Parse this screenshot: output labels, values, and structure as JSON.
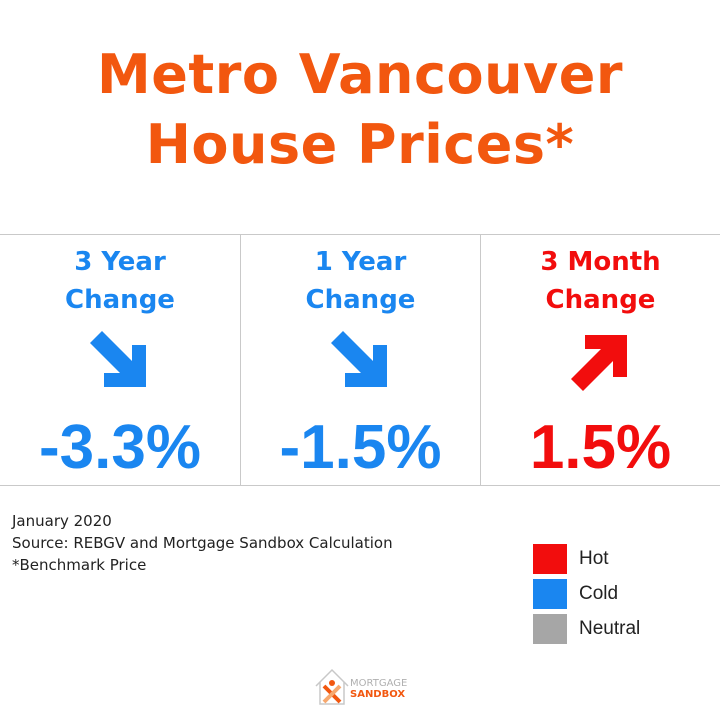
{
  "title": {
    "line1": "Metro Vancouver",
    "line2": "House Prices*"
  },
  "cards": [
    {
      "label_line1": "3 Year",
      "label_line2": "Change",
      "direction": "down",
      "value": "-3.3%",
      "status": "cold"
    },
    {
      "label_line1": "1 Year",
      "label_line2": "Change",
      "direction": "down",
      "value": "-1.5%",
      "status": "cold"
    },
    {
      "label_line1": "3 Month",
      "label_line2": "Change",
      "direction": "up",
      "value": "1.5%",
      "status": "hot"
    }
  ],
  "notes": {
    "date": "January 2020",
    "source": "Source: REBGV and Mortgage Sandbox Calculation",
    "footnote": "*Benchmark Price"
  },
  "legend": [
    {
      "label": "Hot",
      "color": "#f20d0d"
    },
    {
      "label": "Cold",
      "color": "#1a86f0"
    },
    {
      "label": "Neutral",
      "color": "#a6a6a6"
    }
  ],
  "logo": {
    "line1": "MORTGAGE",
    "line2": "SANDBOX"
  },
  "colors": {
    "title": "#f2570f",
    "hot": "#f20d0d",
    "cold": "#1a86f0",
    "neutral": "#a6a6a6",
    "border": "#c9c9c9"
  }
}
